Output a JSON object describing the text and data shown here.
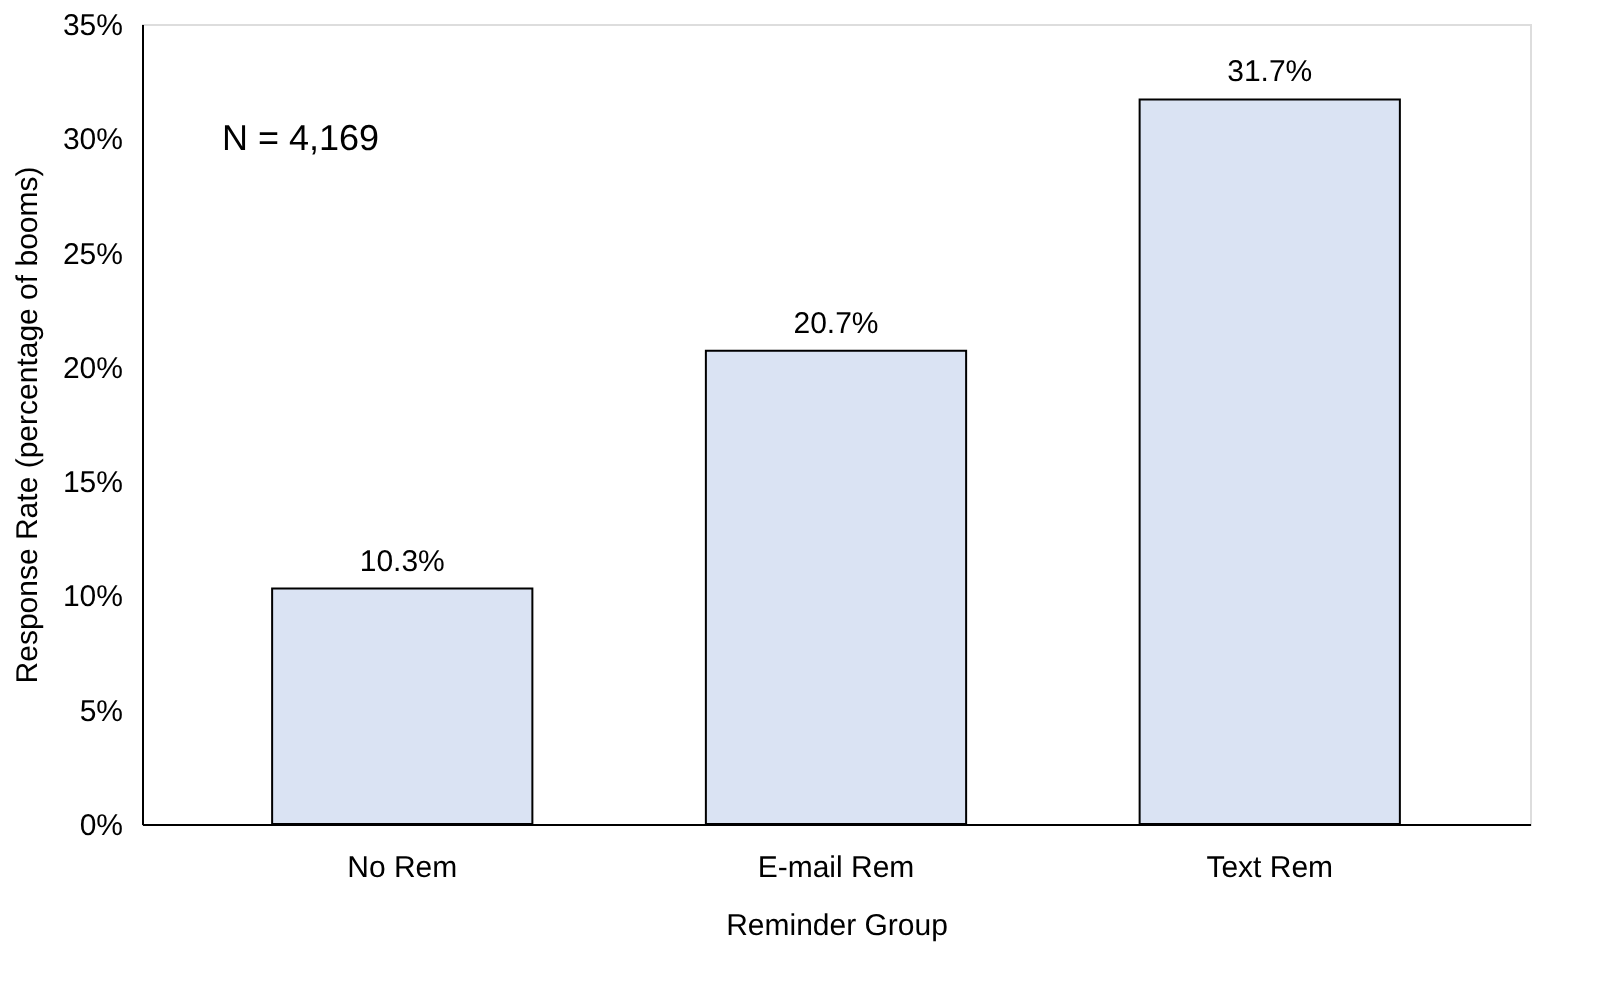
{
  "chart_data": {
    "type": "bar",
    "xlabel": "Reminder Group",
    "ylabel": "Response Rate (percentage of booms)",
    "categories": [
      "No Rem",
      "E-mail Rem",
      "Text Rem"
    ],
    "values": [
      10.3,
      20.7,
      31.7
    ],
    "value_labels": [
      "10.3%",
      "20.7%",
      "31.7%"
    ],
    "color": "#dae3f3",
    "ylim": [
      0,
      35
    ],
    "yticks": [
      {
        "value": 0,
        "label": "0%"
      },
      {
        "value": 5,
        "label": "5%"
      },
      {
        "value": 10,
        "label": "10%"
      },
      {
        "value": 15,
        "label": "15%"
      },
      {
        "value": 20,
        "label": "20%"
      },
      {
        "value": 25,
        "label": "25%"
      },
      {
        "value": 30,
        "label": "30%"
      },
      {
        "value": 35,
        "label": "35%"
      }
    ],
    "grid": false,
    "annotations": [
      "N = 4,169"
    ]
  }
}
